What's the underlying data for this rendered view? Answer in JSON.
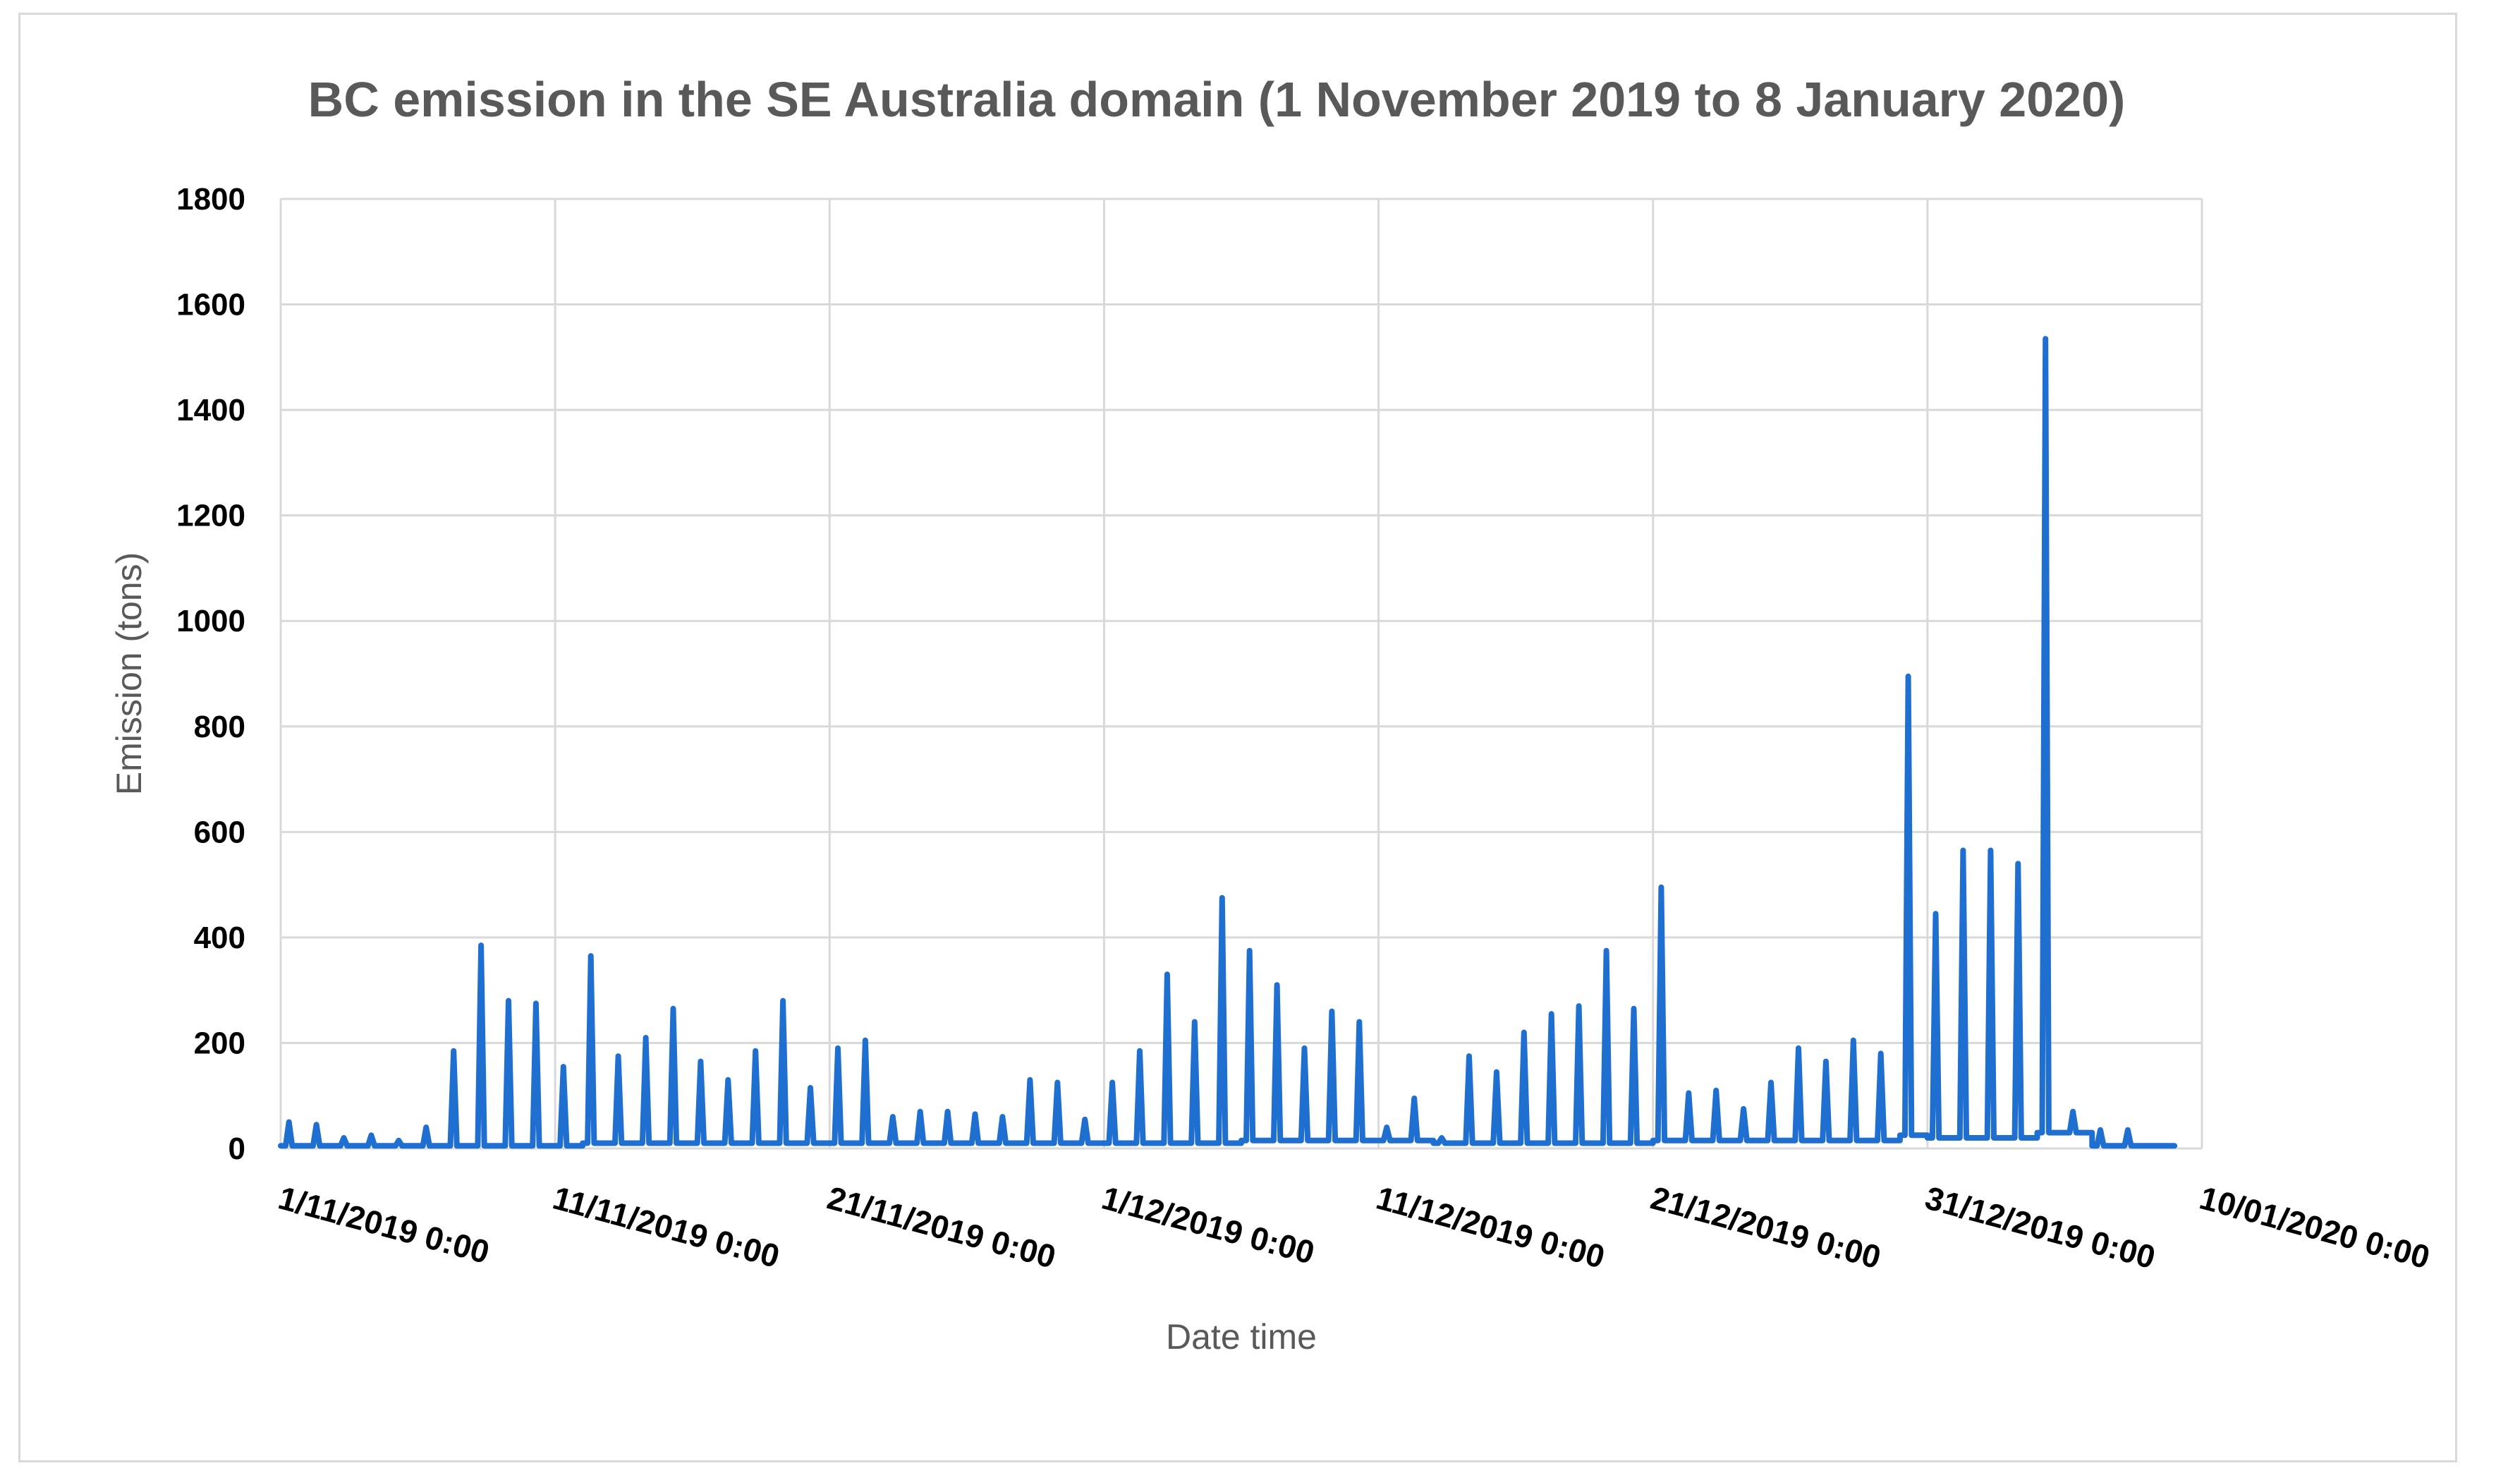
{
  "chart_data": {
    "type": "line",
    "title": "BC emission in the SE Australia domain (1 November 2019 to 8 January 2020)",
    "xlabel": "Date time",
    "ylabel": "Emission (tons)",
    "ylim": [
      0,
      1800
    ],
    "yticks": [
      "0",
      "200",
      "400",
      "600",
      "800",
      "1000",
      "1200",
      "1400",
      "1600",
      "1800"
    ],
    "xlim": [
      "2019-11-01",
      "2020-01-10"
    ],
    "xticks": [
      "1/11/2019 0:00",
      "11/11/2019 0:00",
      "21/11/2019 0:00",
      "1/12/2019 0:00",
      "11/12/2019 0:00",
      "21/12/2019 0:00",
      "31/12/2019 0:00",
      "10/01/2020 0:00"
    ],
    "grid": true,
    "legend": "none",
    "series": [
      {
        "color": "#1f6fd0",
        "x": [
          "2019-11-01",
          "2019-11-02",
          "2019-11-03",
          "2019-11-04",
          "2019-11-05",
          "2019-11-06",
          "2019-11-07",
          "2019-11-08",
          "2019-11-09",
          "2019-11-10",
          "2019-11-11",
          "2019-11-12",
          "2019-11-13",
          "2019-11-14",
          "2019-11-15",
          "2019-11-16",
          "2019-11-17",
          "2019-11-18",
          "2019-11-19",
          "2019-11-20",
          "2019-11-21",
          "2019-11-22",
          "2019-11-23",
          "2019-11-24",
          "2019-11-25",
          "2019-11-26",
          "2019-11-27",
          "2019-11-28",
          "2019-11-29",
          "2019-11-30",
          "2019-12-01",
          "2019-12-02",
          "2019-12-03",
          "2019-12-04",
          "2019-12-05",
          "2019-12-06",
          "2019-12-07",
          "2019-12-08",
          "2019-12-09",
          "2019-12-10",
          "2019-12-11",
          "2019-12-12",
          "2019-12-13",
          "2019-12-14",
          "2019-12-15",
          "2019-12-16",
          "2019-12-17",
          "2019-12-18",
          "2019-12-19",
          "2019-12-20",
          "2019-12-21",
          "2019-12-22",
          "2019-12-23",
          "2019-12-24",
          "2019-12-25",
          "2019-12-26",
          "2019-12-27",
          "2019-12-28",
          "2019-12-29",
          "2019-12-30",
          "2019-12-31",
          "2020-01-01",
          "2020-01-02",
          "2020-01-03",
          "2020-01-04",
          "2020-01-05",
          "2020-01-06",
          "2020-01-07",
          "2020-01-08"
        ],
        "peaks": [
          50,
          45,
          20,
          25,
          15,
          40,
          185,
          385,
          280,
          275,
          155,
          365,
          175,
          210,
          265,
          165,
          130,
          185,
          280,
          115,
          190,
          205,
          60,
          70,
          70,
          65,
          60,
          130,
          125,
          55,
          125,
          185,
          330,
          240,
          475,
          375,
          310,
          190,
          260,
          240,
          40,
          95,
          20,
          175,
          145,
          220,
          255,
          270,
          375,
          265,
          495,
          105,
          110,
          75,
          125,
          190,
          165,
          205,
          180,
          895,
          445,
          565,
          565,
          540,
          1535,
          70,
          35,
          35,
          5
        ],
        "baseline": [
          5,
          5,
          5,
          5,
          5,
          5,
          5,
          5,
          5,
          5,
          5,
          10,
          10,
          10,
          10,
          10,
          10,
          10,
          10,
          10,
          10,
          10,
          10,
          10,
          10,
          10,
          10,
          10,
          10,
          10,
          10,
          10,
          10,
          10,
          10,
          15,
          15,
          15,
          15,
          15,
          15,
          15,
          10,
          10,
          10,
          10,
          10,
          10,
          10,
          10,
          15,
          15,
          15,
          15,
          15,
          15,
          15,
          15,
          15,
          25,
          20,
          20,
          20,
          20,
          30,
          30,
          5,
          5,
          5
        ]
      }
    ]
  }
}
